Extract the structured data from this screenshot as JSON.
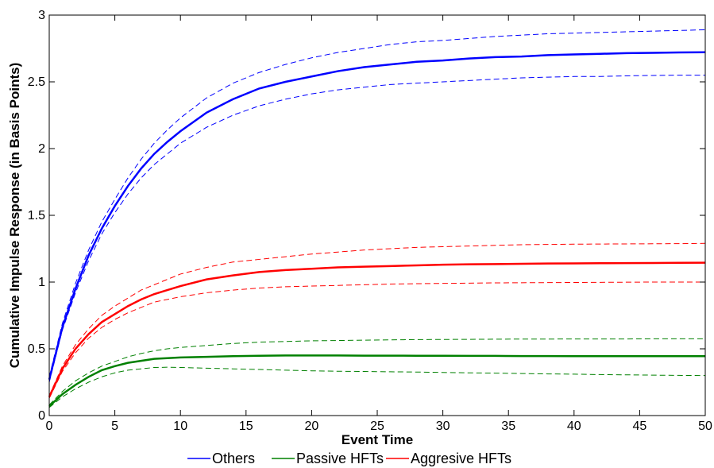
{
  "chart_data": {
    "type": "line",
    "xlabel": "Event Time",
    "ylabel": "Cumulative Impulse Response (in Basis Points)",
    "xlim": [
      0,
      50
    ],
    "ylim": [
      0,
      3
    ],
    "xticks": [
      0,
      5,
      10,
      15,
      20,
      25,
      30,
      35,
      40,
      45,
      50
    ],
    "yticks": [
      0,
      0.5,
      1,
      1.5,
      2,
      2.5,
      3
    ],
    "ytick_labels": [
      "0",
      "0.5",
      "1",
      "1.5",
      "2",
      "2.5",
      "3"
    ],
    "grid": false,
    "legend_position": "bottom",
    "x": [
      0,
      1,
      2,
      3,
      4,
      5,
      6,
      7,
      8,
      9,
      10,
      12,
      14,
      16,
      18,
      20,
      22,
      24,
      26,
      28,
      30,
      32,
      34,
      36,
      38,
      40,
      42,
      44,
      46,
      48,
      50
    ],
    "series": [
      {
        "name": "Others",
        "color": "#0000ff",
        "values": [
          0.27,
          0.66,
          0.95,
          1.2,
          1.4,
          1.57,
          1.72,
          1.85,
          1.96,
          2.05,
          2.13,
          2.27,
          2.37,
          2.45,
          2.5,
          2.54,
          2.58,
          2.61,
          2.63,
          2.65,
          2.66,
          2.675,
          2.685,
          2.69,
          2.7,
          2.705,
          2.71,
          2.715,
          2.717,
          2.72,
          2.722
        ],
        "upper": [
          0.29,
          0.69,
          0.99,
          1.24,
          1.45,
          1.62,
          1.78,
          1.92,
          2.04,
          2.14,
          2.23,
          2.38,
          2.49,
          2.57,
          2.63,
          2.68,
          2.72,
          2.75,
          2.78,
          2.8,
          2.81,
          2.825,
          2.84,
          2.85,
          2.86,
          2.865,
          2.87,
          2.875,
          2.88,
          2.885,
          2.89
        ],
        "lower": [
          0.25,
          0.64,
          0.92,
          1.16,
          1.36,
          1.52,
          1.66,
          1.78,
          1.88,
          1.96,
          2.04,
          2.16,
          2.25,
          2.32,
          2.37,
          2.41,
          2.44,
          2.46,
          2.48,
          2.49,
          2.5,
          2.51,
          2.52,
          2.53,
          2.535,
          2.54,
          2.54,
          2.545,
          2.548,
          2.55,
          2.55
        ]
      },
      {
        "name": "Passive HFTs",
        "color": "#008000",
        "values": [
          0.07,
          0.16,
          0.23,
          0.29,
          0.34,
          0.37,
          0.395,
          0.41,
          0.425,
          0.43,
          0.435,
          0.44,
          0.445,
          0.448,
          0.45,
          0.45,
          0.45,
          0.449,
          0.449,
          0.448,
          0.448,
          0.447,
          0.447,
          0.446,
          0.446,
          0.445,
          0.445,
          0.445,
          0.445,
          0.445,
          0.445
        ],
        "upper": [
          0.08,
          0.18,
          0.26,
          0.32,
          0.37,
          0.405,
          0.44,
          0.465,
          0.485,
          0.5,
          0.51,
          0.525,
          0.54,
          0.55,
          0.555,
          0.56,
          0.562,
          0.565,
          0.567,
          0.569,
          0.57,
          0.571,
          0.572,
          0.573,
          0.573,
          0.574,
          0.574,
          0.574,
          0.575,
          0.575,
          0.575
        ],
        "lower": [
          0.06,
          0.14,
          0.2,
          0.25,
          0.29,
          0.32,
          0.34,
          0.35,
          0.36,
          0.362,
          0.36,
          0.355,
          0.35,
          0.345,
          0.34,
          0.335,
          0.332,
          0.33,
          0.328,
          0.326,
          0.323,
          0.32,
          0.318,
          0.315,
          0.312,
          0.31,
          0.307,
          0.305,
          0.303,
          0.301,
          0.3
        ]
      },
      {
        "name": "Aggresive HFTs",
        "color": "#ff0000",
        "values": [
          0.14,
          0.35,
          0.5,
          0.61,
          0.7,
          0.76,
          0.82,
          0.87,
          0.91,
          0.94,
          0.97,
          1.02,
          1.05,
          1.075,
          1.09,
          1.1,
          1.11,
          1.115,
          1.12,
          1.125,
          1.13,
          1.133,
          1.135,
          1.137,
          1.139,
          1.14,
          1.141,
          1.142,
          1.143,
          1.144,
          1.145
        ],
        "upper": [
          0.15,
          0.37,
          0.53,
          0.65,
          0.75,
          0.82,
          0.88,
          0.94,
          0.98,
          1.02,
          1.06,
          1.11,
          1.15,
          1.17,
          1.19,
          1.21,
          1.225,
          1.24,
          1.25,
          1.26,
          1.265,
          1.27,
          1.275,
          1.28,
          1.282,
          1.284,
          1.285,
          1.286,
          1.287,
          1.288,
          1.29
        ],
        "lower": [
          0.13,
          0.33,
          0.47,
          0.58,
          0.66,
          0.72,
          0.77,
          0.81,
          0.85,
          0.87,
          0.89,
          0.92,
          0.94,
          0.955,
          0.965,
          0.97,
          0.975,
          0.98,
          0.985,
          0.988,
          0.99,
          0.992,
          0.994,
          0.995,
          0.996,
          0.997,
          0.998,
          0.999,
          1.0,
          1.0,
          1.0
        ]
      }
    ]
  }
}
